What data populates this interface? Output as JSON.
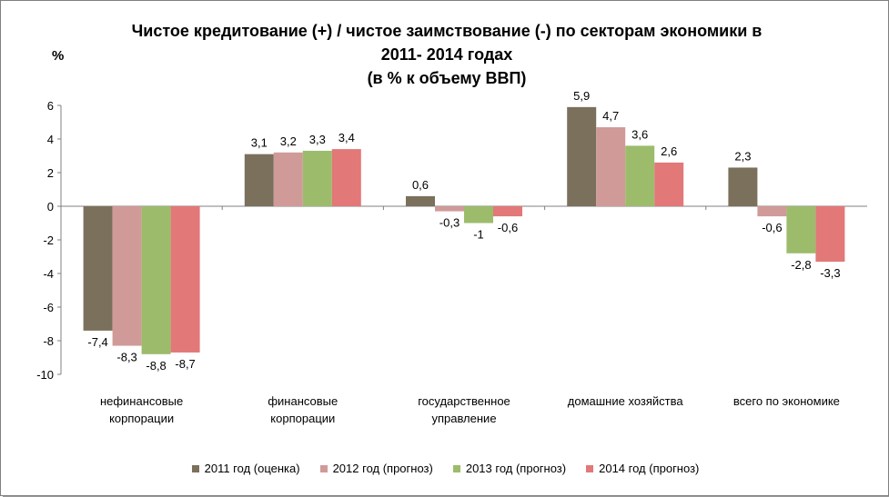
{
  "chart_data": {
    "type": "bar",
    "title_lines": [
      "Чистое кредитование (+) / чистое заимствование (-) по секторам экономики в",
      "2011- 2014 годах",
      "(в % к объему ВВП)"
    ],
    "ylabel": "%",
    "ylim": [
      -10,
      6
    ],
    "yticks": [
      "6",
      "4",
      "2",
      "0",
      "-2",
      "-4",
      "-6",
      "-8",
      "-10"
    ],
    "ytick_values": [
      6,
      4,
      2,
      0,
      -2,
      -4,
      -6,
      -8,
      -10
    ],
    "categories": [
      [
        "нефинансовые",
        "корпорации"
      ],
      [
        "финансовые",
        "корпорации"
      ],
      [
        "государственное",
        "управление"
      ],
      [
        "домашние хозяйства"
      ],
      [
        "всего по экономике"
      ]
    ],
    "series": [
      {
        "name": "2011 год (оценка)",
        "color": "#7a705c",
        "values": [
          -7.4,
          3.1,
          0.6,
          5.9,
          2.3
        ],
        "labels": [
          "-7,4",
          "3,1",
          "0,6",
          "5,9",
          "2,3"
        ]
      },
      {
        "name": "2012 год (прогноз)",
        "color": "#d09a99",
        "values": [
          -8.3,
          3.2,
          -0.3,
          4.7,
          -0.6
        ],
        "labels": [
          "-8,3",
          "3,2",
          "-0,3",
          "4,7",
          "-0,6"
        ]
      },
      {
        "name": "2013 год (прогноз)",
        "color": "#9cbc6c",
        "values": [
          -8.8,
          3.3,
          -1,
          3.6,
          -2.8
        ],
        "labels": [
          "-8,8",
          "3,3",
          "-1",
          "3,6",
          "-2,8"
        ]
      },
      {
        "name": "2014 год (прогноз)",
        "color": "#e27878",
        "values": [
          -8.7,
          3.4,
          -0.6,
          2.6,
          -3.3
        ],
        "labels": [
          "-8,7",
          "3,4",
          "-0,6",
          "2,6",
          "-3,3"
        ]
      }
    ],
    "grid": false,
    "legend_position": "bottom"
  }
}
